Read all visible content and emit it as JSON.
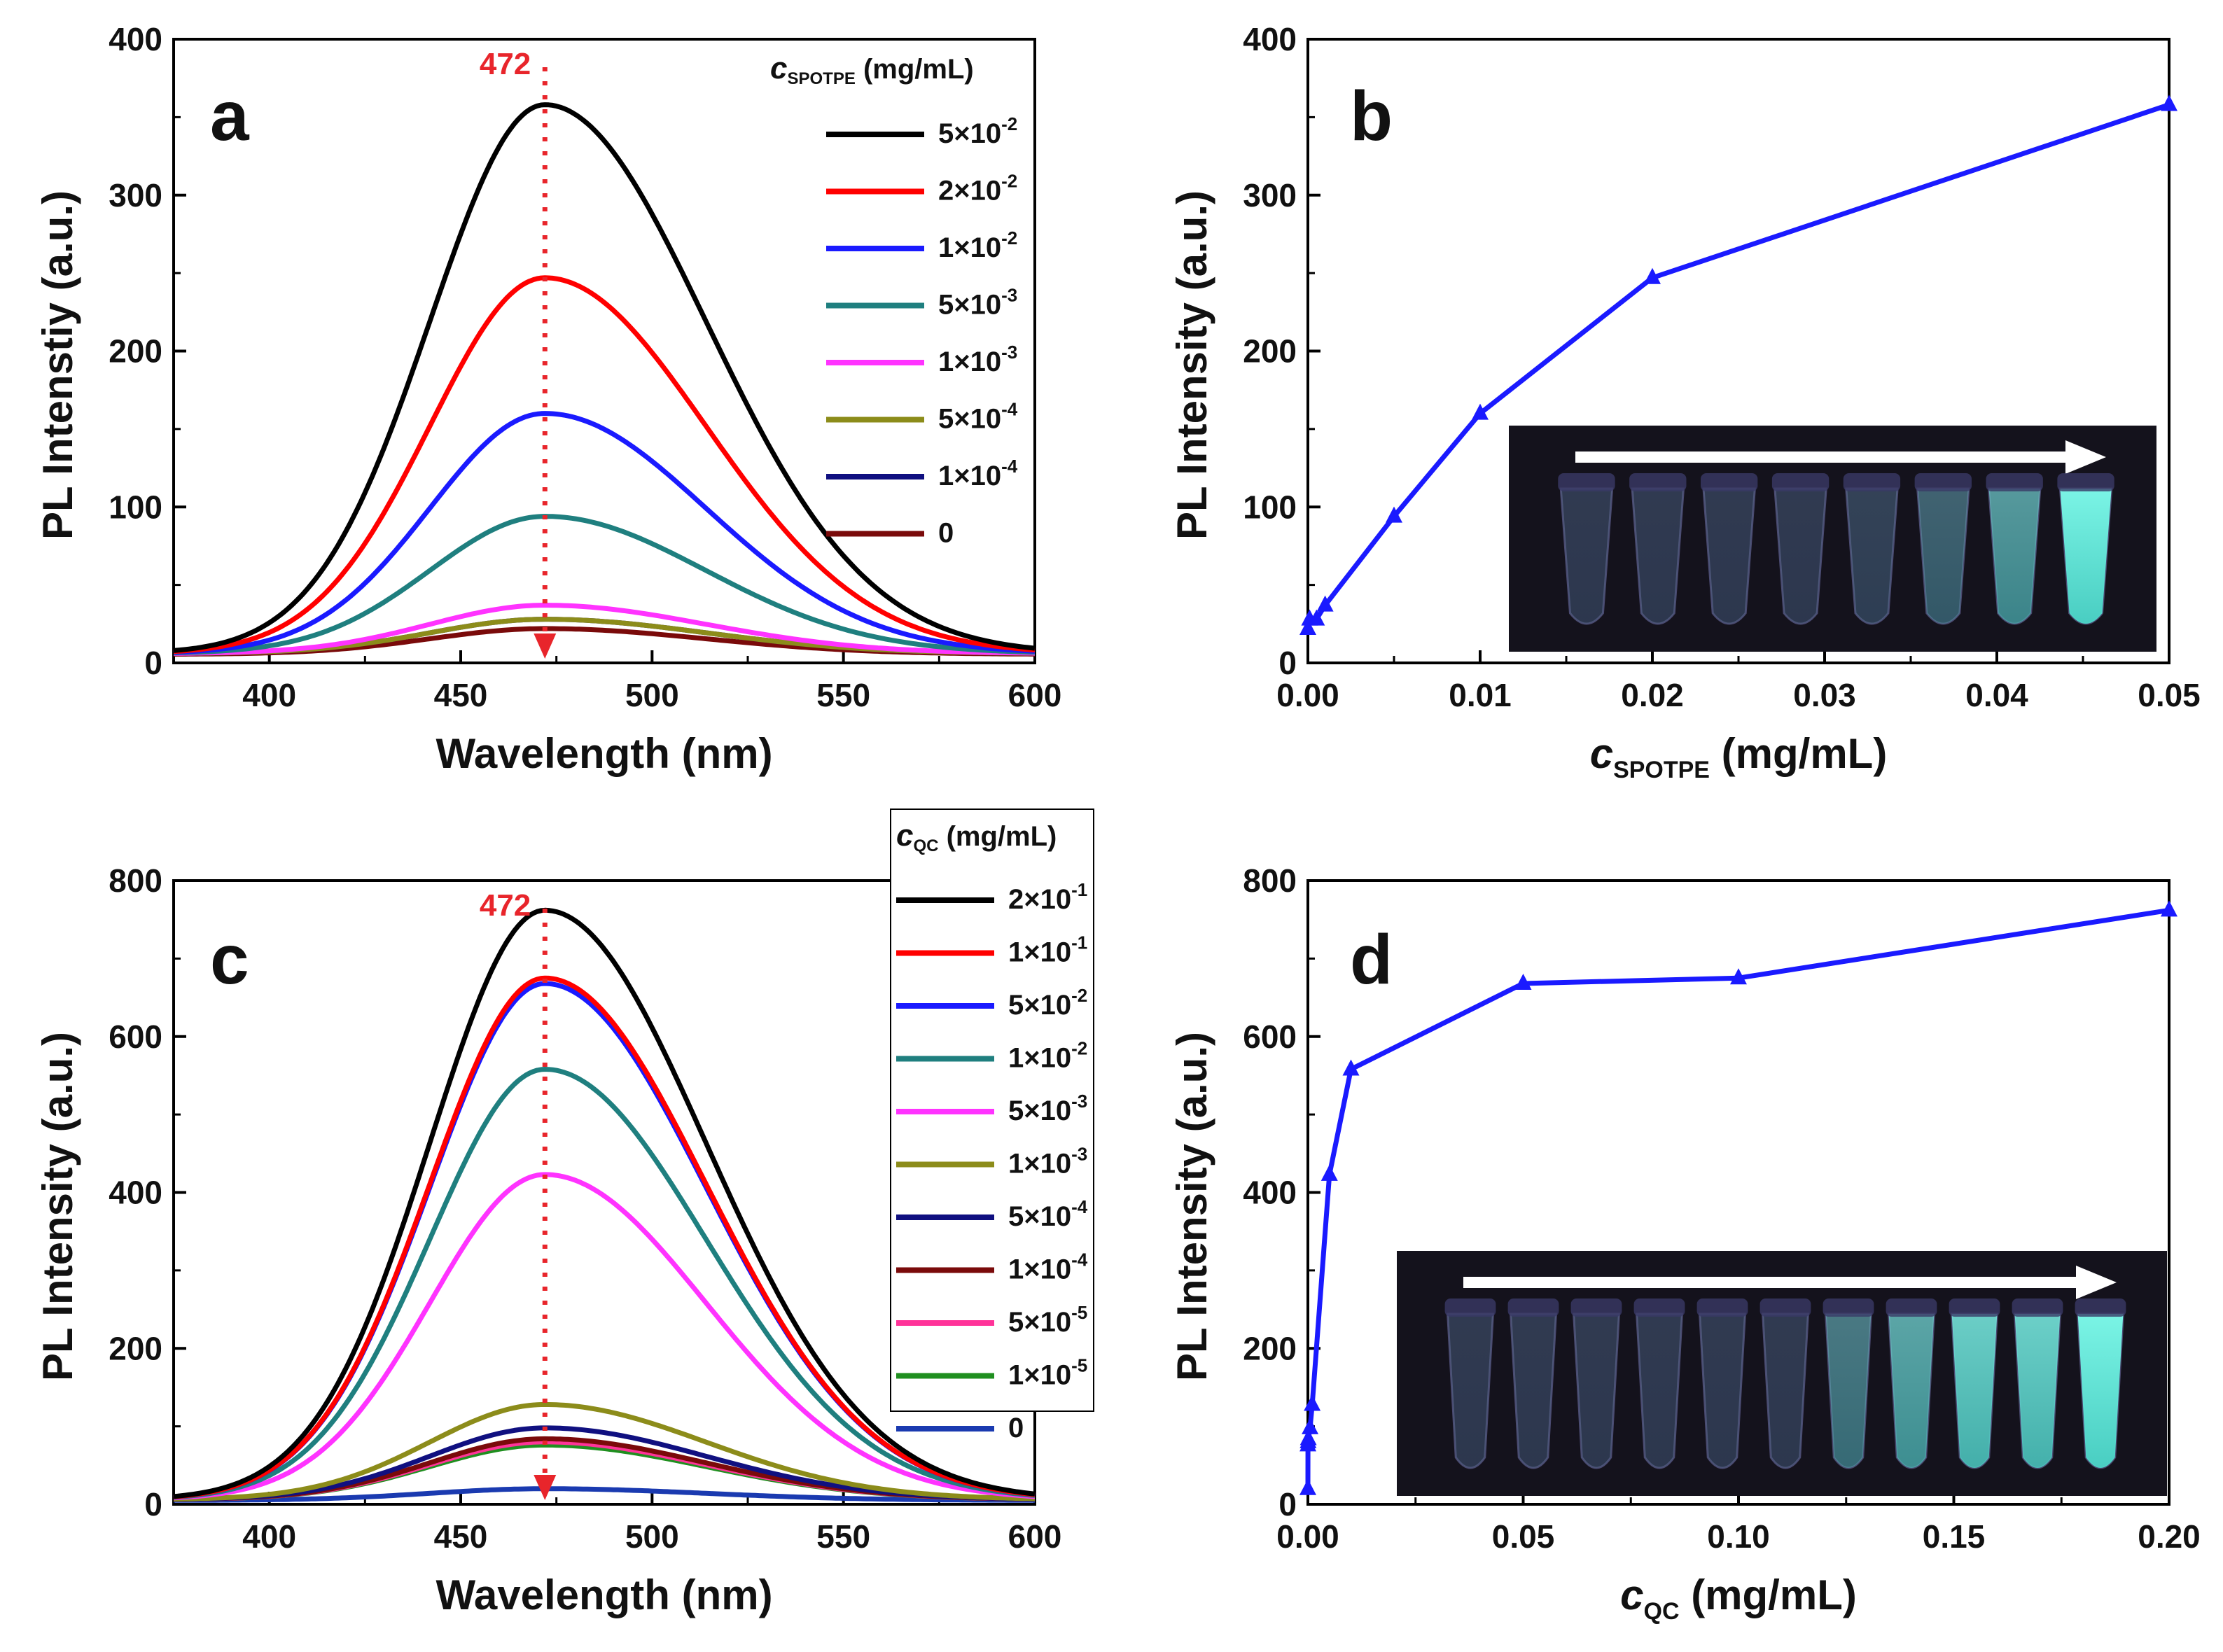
{
  "chart_data": [
    {
      "panel": "a",
      "type": "line",
      "title": "",
      "xlabel": "Wavelength (nm)",
      "ylabel": "PL Intenstiy (a.u.)",
      "xlim": [
        375,
        600
      ],
      "ylim": [
        0,
        400
      ],
      "xticks": [
        400,
        450,
        500,
        550,
        600
      ],
      "yticks": [
        0,
        100,
        200,
        300,
        400
      ],
      "peak_label": "472",
      "peak_x": 472,
      "legend_title_var": "c",
      "legend_title_sub": "SPOTPE",
      "legend_title_unit": "(mg/mL)",
      "series": [
        {
          "mant": "5×10",
          "exp": "-2",
          "color": "#000000",
          "peak": 358
        },
        {
          "mant": "2×10",
          "exp": "-2",
          "color": "#ff0000",
          "peak": 247
        },
        {
          "mant": "1×10",
          "exp": "-2",
          "color": "#1a1aff",
          "peak": 160
        },
        {
          "mant": "5×10",
          "exp": "-3",
          "color": "#1f7f7f",
          "peak": 94
        },
        {
          "mant": "1×10",
          "exp": "-3",
          "color": "#ff33ff",
          "peak": 37
        },
        {
          "mant": "5×10",
          "exp": "-4",
          "color": "#8c8c1a",
          "peak": 28
        },
        {
          "mant": "1×10",
          "exp": "-4",
          "color": "#101080",
          "peak": 28
        },
        {
          "mant": "0",
          "exp": "",
          "color": "#7a0a0a",
          "peak": 22
        }
      ]
    },
    {
      "panel": "b",
      "type": "line",
      "title": "",
      "xlabel_var": "c",
      "xlabel_sub": "SPOTPE",
      "xlabel_unit": "(mg/mL)",
      "ylabel": "PL Intensity (a.u.)",
      "xlim": [
        0,
        0.05
      ],
      "ylim": [
        0,
        400
      ],
      "xticks": [
        "0.00",
        "0.01",
        "0.02",
        "0.03",
        "0.04",
        "0.05"
      ],
      "yticks": [
        0,
        100,
        200,
        300,
        400
      ],
      "x": [
        0,
        0.0001,
        0.0005,
        0.001,
        0.005,
        0.01,
        0.02,
        0.05
      ],
      "y": [
        22,
        28,
        28,
        37,
        94,
        160,
        247,
        358
      ],
      "color": "#1a1aff",
      "inset_vials": 8
    },
    {
      "panel": "c",
      "type": "line",
      "title": "",
      "xlabel": "Wavelength (nm)",
      "ylabel": "PL Intensity (a.u.)",
      "xlim": [
        375,
        600
      ],
      "ylim": [
        0,
        800
      ],
      "xticks": [
        400,
        450,
        500,
        550,
        600
      ],
      "yticks": [
        0,
        200,
        400,
        600,
        800
      ],
      "peak_label": "472",
      "peak_x": 472,
      "legend_title_var": "c",
      "legend_title_sub": "QC",
      "legend_title_unit": "(mg/mL)",
      "series": [
        {
          "mant": "2×10",
          "exp": "-1",
          "color": "#000000",
          "peak": 762
        },
        {
          "mant": "1×10",
          "exp": "-1",
          "color": "#ff0000",
          "peak": 675
        },
        {
          "mant": "5×10",
          "exp": "-2",
          "color": "#1a1aff",
          "peak": 668
        },
        {
          "mant": "1×10",
          "exp": "-2",
          "color": "#1f7f7f",
          "peak": 558
        },
        {
          "mant": "5×10",
          "exp": "-3",
          "color": "#ff33ff",
          "peak": 423
        },
        {
          "mant": "1×10",
          "exp": "-3",
          "color": "#8c8c1a",
          "peak": 128
        },
        {
          "mant": "5×10",
          "exp": "-4",
          "color": "#101080",
          "peak": 98
        },
        {
          "mant": "1×10",
          "exp": "-4",
          "color": "#7a0a0a",
          "peak": 84
        },
        {
          "mant": "5×10",
          "exp": "-5",
          "color": "#ff3399",
          "peak": 80
        },
        {
          "mant": "1×10",
          "exp": "-5",
          "color": "#1f8f1f",
          "peak": 76
        },
        {
          "mant": "0",
          "exp": "",
          "color": "#1a3ab0",
          "peak": 20
        }
      ]
    },
    {
      "panel": "d",
      "type": "line",
      "title": "",
      "xlabel_var": "c",
      "xlabel_sub": "QC",
      "xlabel_unit": "(mg/mL)",
      "ylabel": "PL Intensity (a.u.)",
      "xlim": [
        0,
        0.2
      ],
      "ylim": [
        0,
        800
      ],
      "xticks": [
        "0.00",
        "0.05",
        "0.10",
        "0.15",
        "0.20"
      ],
      "yticks": [
        0,
        200,
        400,
        600,
        800
      ],
      "x": [
        0,
        1e-05,
        5e-05,
        0.0001,
        0.0005,
        0.001,
        0.005,
        0.01,
        0.05,
        0.1,
        0.2
      ],
      "y": [
        20,
        76,
        80,
        84,
        98,
        128,
        423,
        558,
        668,
        675,
        762
      ],
      "color": "#1a1aff",
      "inset_vials": 11
    }
  ]
}
